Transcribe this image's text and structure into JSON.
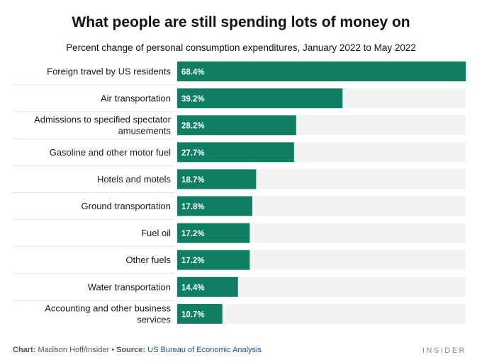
{
  "header": {
    "title": "What people are still spending lots of money on",
    "subtitle": "Percent change of personal consumption expenditures, January 2022 to May 2022"
  },
  "footer": {
    "chart_label": "Chart:",
    "chart_author": "Madison Hoff/Insider",
    "bullet": "•",
    "source_label": "Source:",
    "source_name": "US Bureau of Economic Analysis",
    "brand": "INSIDER"
  },
  "colors": {
    "bar": "#0f7e62",
    "track": "#f2f2f2",
    "separator": "#e3e3e3",
    "label": "#1a1a1a",
    "value_text": "#ffffff"
  },
  "chart_data": {
    "type": "bar",
    "orientation": "horizontal",
    "title": "What people are still spending lots of money on",
    "subtitle": "Percent change of personal consumption expenditures, January 2022 to May 2022",
    "categories": [
      [
        "Foreign travel by US residents"
      ],
      [
        "Air transportation"
      ],
      [
        "Admissions to specified spectator",
        "amusements"
      ],
      [
        "Gasoline and other motor fuel"
      ],
      [
        "Hotels and motels"
      ],
      [
        "Ground transportation"
      ],
      [
        "Fuel oil"
      ],
      [
        "Other fuels"
      ],
      [
        "Water transportation"
      ],
      [
        "Accounting and other business",
        "services"
      ]
    ],
    "values": [
      68.4,
      39.2,
      28.2,
      27.7,
      18.7,
      17.8,
      17.2,
      17.2,
      14.4,
      10.7
    ],
    "value_labels": [
      "68.4%",
      "39.2%",
      "28.2%",
      "27.7%",
      "18.7%",
      "17.8%",
      "17.2%",
      "17.2%",
      "14.4%",
      "10.7%"
    ],
    "xlim": [
      0,
      68.4
    ],
    "grid": false,
    "legend": "none"
  }
}
